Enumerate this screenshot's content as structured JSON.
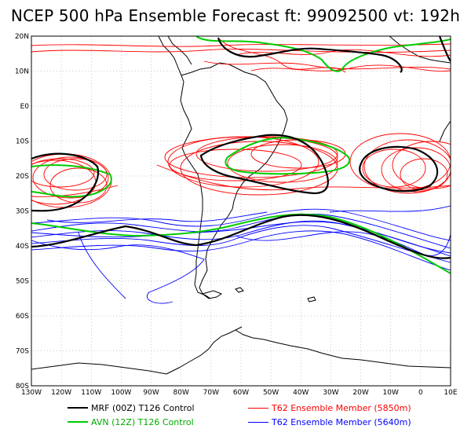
{
  "title": "NCEP 500 hPa Ensemble Forecast  ft: 99092500 vt: 192h",
  "colors": {
    "mrf": "#000000",
    "avn": "#00cc00",
    "ens5850": "#ff0000",
    "ens5640": "#0000ff",
    "land": "#000000",
    "grid": "#999999"
  },
  "axes": {
    "lat_labels": [
      "20N",
      "10N",
      "E0",
      "10S",
      "20S",
      "30S",
      "40S",
      "50S",
      "60S",
      "70S",
      "80S"
    ],
    "lon_labels": [
      "130W",
      "120W",
      "110W",
      "100W",
      "90W",
      "80W",
      "70W",
      "60W",
      "50W",
      "40W",
      "30W",
      "20W",
      "10W",
      "0",
      "10E"
    ]
  },
  "legend": {
    "mrf": "MRF (00Z) T126 Control",
    "avn": "AVN (12Z) T126 Control",
    "red": "T62 Ensemble Member (5850m)",
    "blue": "T62 Ensemble Member (5640m)"
  }
}
